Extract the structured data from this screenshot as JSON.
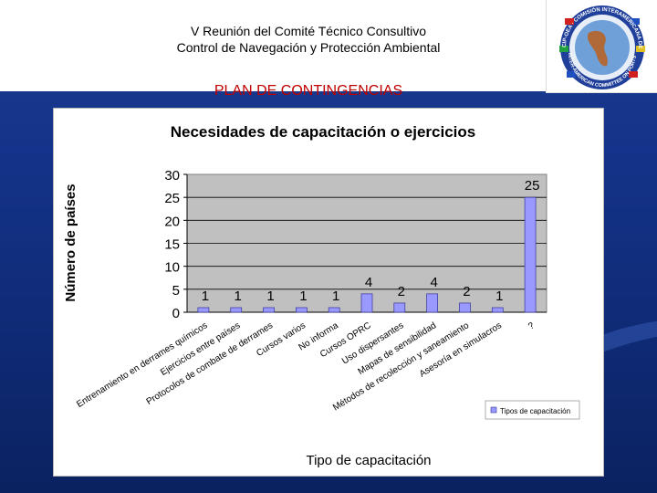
{
  "header": {
    "line1": "V Reunión del Comité Técnico Consultivo",
    "line2": "Control de Navegación y Protección Ambiental",
    "section_title": "PLAN DE CONTINGENCIAS"
  },
  "logo": {
    "top_text": "CIP-OEA · COMISIÓN INTERAMERICANA DE PUERTOS",
    "bottom_text": "INTER-AMERICAN COMMITTEE ON PORTS"
  },
  "colors": {
    "bar_fill": "#9999ff",
    "bar_edge": "#333399",
    "plot_bg": "#c0c0c0",
    "title_red": "#c00000"
  },
  "chart_data": {
    "type": "bar",
    "title": "Necesidades de capacitación o ejercicios",
    "xlabel": "Tipo de capacitación",
    "ylabel": "Número de países",
    "ylim": [
      0,
      30
    ],
    "yticks": [
      0,
      5,
      10,
      15,
      20,
      25,
      30
    ],
    "grid": true,
    "legend_position": "bottom-right",
    "categories": [
      "Entrenamiento en derrames químicos",
      "Ejercicios entre países",
      "Protocolos de combate de derrames",
      "Cursos varios",
      "No informa",
      "Cursos OPRC",
      "Uso dispersantes",
      "Mapas de sensibilidad",
      "Métodos de recolección y saneamiento",
      "Asesoría en simulacros",
      "?"
    ],
    "series": [
      {
        "name": "Tipos de capacitación",
        "values": [
          1,
          1,
          1,
          1,
          1,
          4,
          2,
          4,
          2,
          1,
          25
        ]
      }
    ]
  }
}
